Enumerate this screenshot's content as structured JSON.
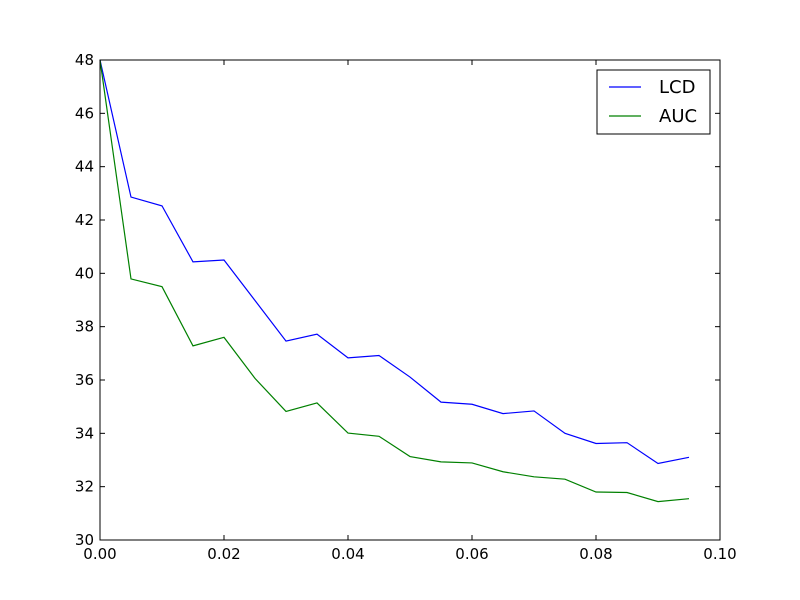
{
  "chart_data": {
    "type": "line",
    "title": "",
    "xlabel": "",
    "ylabel": "",
    "xlim": [
      0.0,
      0.1
    ],
    "ylim": [
      30,
      48
    ],
    "xticks": [
      "0.00",
      "0.02",
      "0.04",
      "0.06",
      "0.08",
      "0.10"
    ],
    "yticks": [
      "30",
      "32",
      "34",
      "36",
      "38",
      "40",
      "42",
      "44",
      "46",
      "48"
    ],
    "grid": false,
    "legend_position": "top-right",
    "x": [
      0.0,
      0.005,
      0.01,
      0.015,
      0.02,
      0.025,
      0.03,
      0.035,
      0.04,
      0.045,
      0.05,
      0.055,
      0.06,
      0.065,
      0.07,
      0.075,
      0.08,
      0.085,
      0.09,
      0.095
    ],
    "series": [
      {
        "name": "LCD",
        "color": "#0000ff",
        "values": [
          48.0,
          42.86,
          42.53,
          40.43,
          40.5,
          38.98,
          37.46,
          37.72,
          36.83,
          36.92,
          36.11,
          35.17,
          35.09,
          34.74,
          34.84,
          34.0,
          33.62,
          33.65,
          32.87,
          33.1
        ]
      },
      {
        "name": "AUC",
        "color": "#008000",
        "values": [
          48.0,
          39.79,
          39.5,
          37.28,
          37.6,
          36.06,
          34.82,
          35.14,
          34.01,
          33.89,
          33.13,
          32.93,
          32.89,
          32.56,
          32.37,
          32.28,
          31.8,
          31.78,
          31.44,
          31.55
        ]
      }
    ]
  }
}
